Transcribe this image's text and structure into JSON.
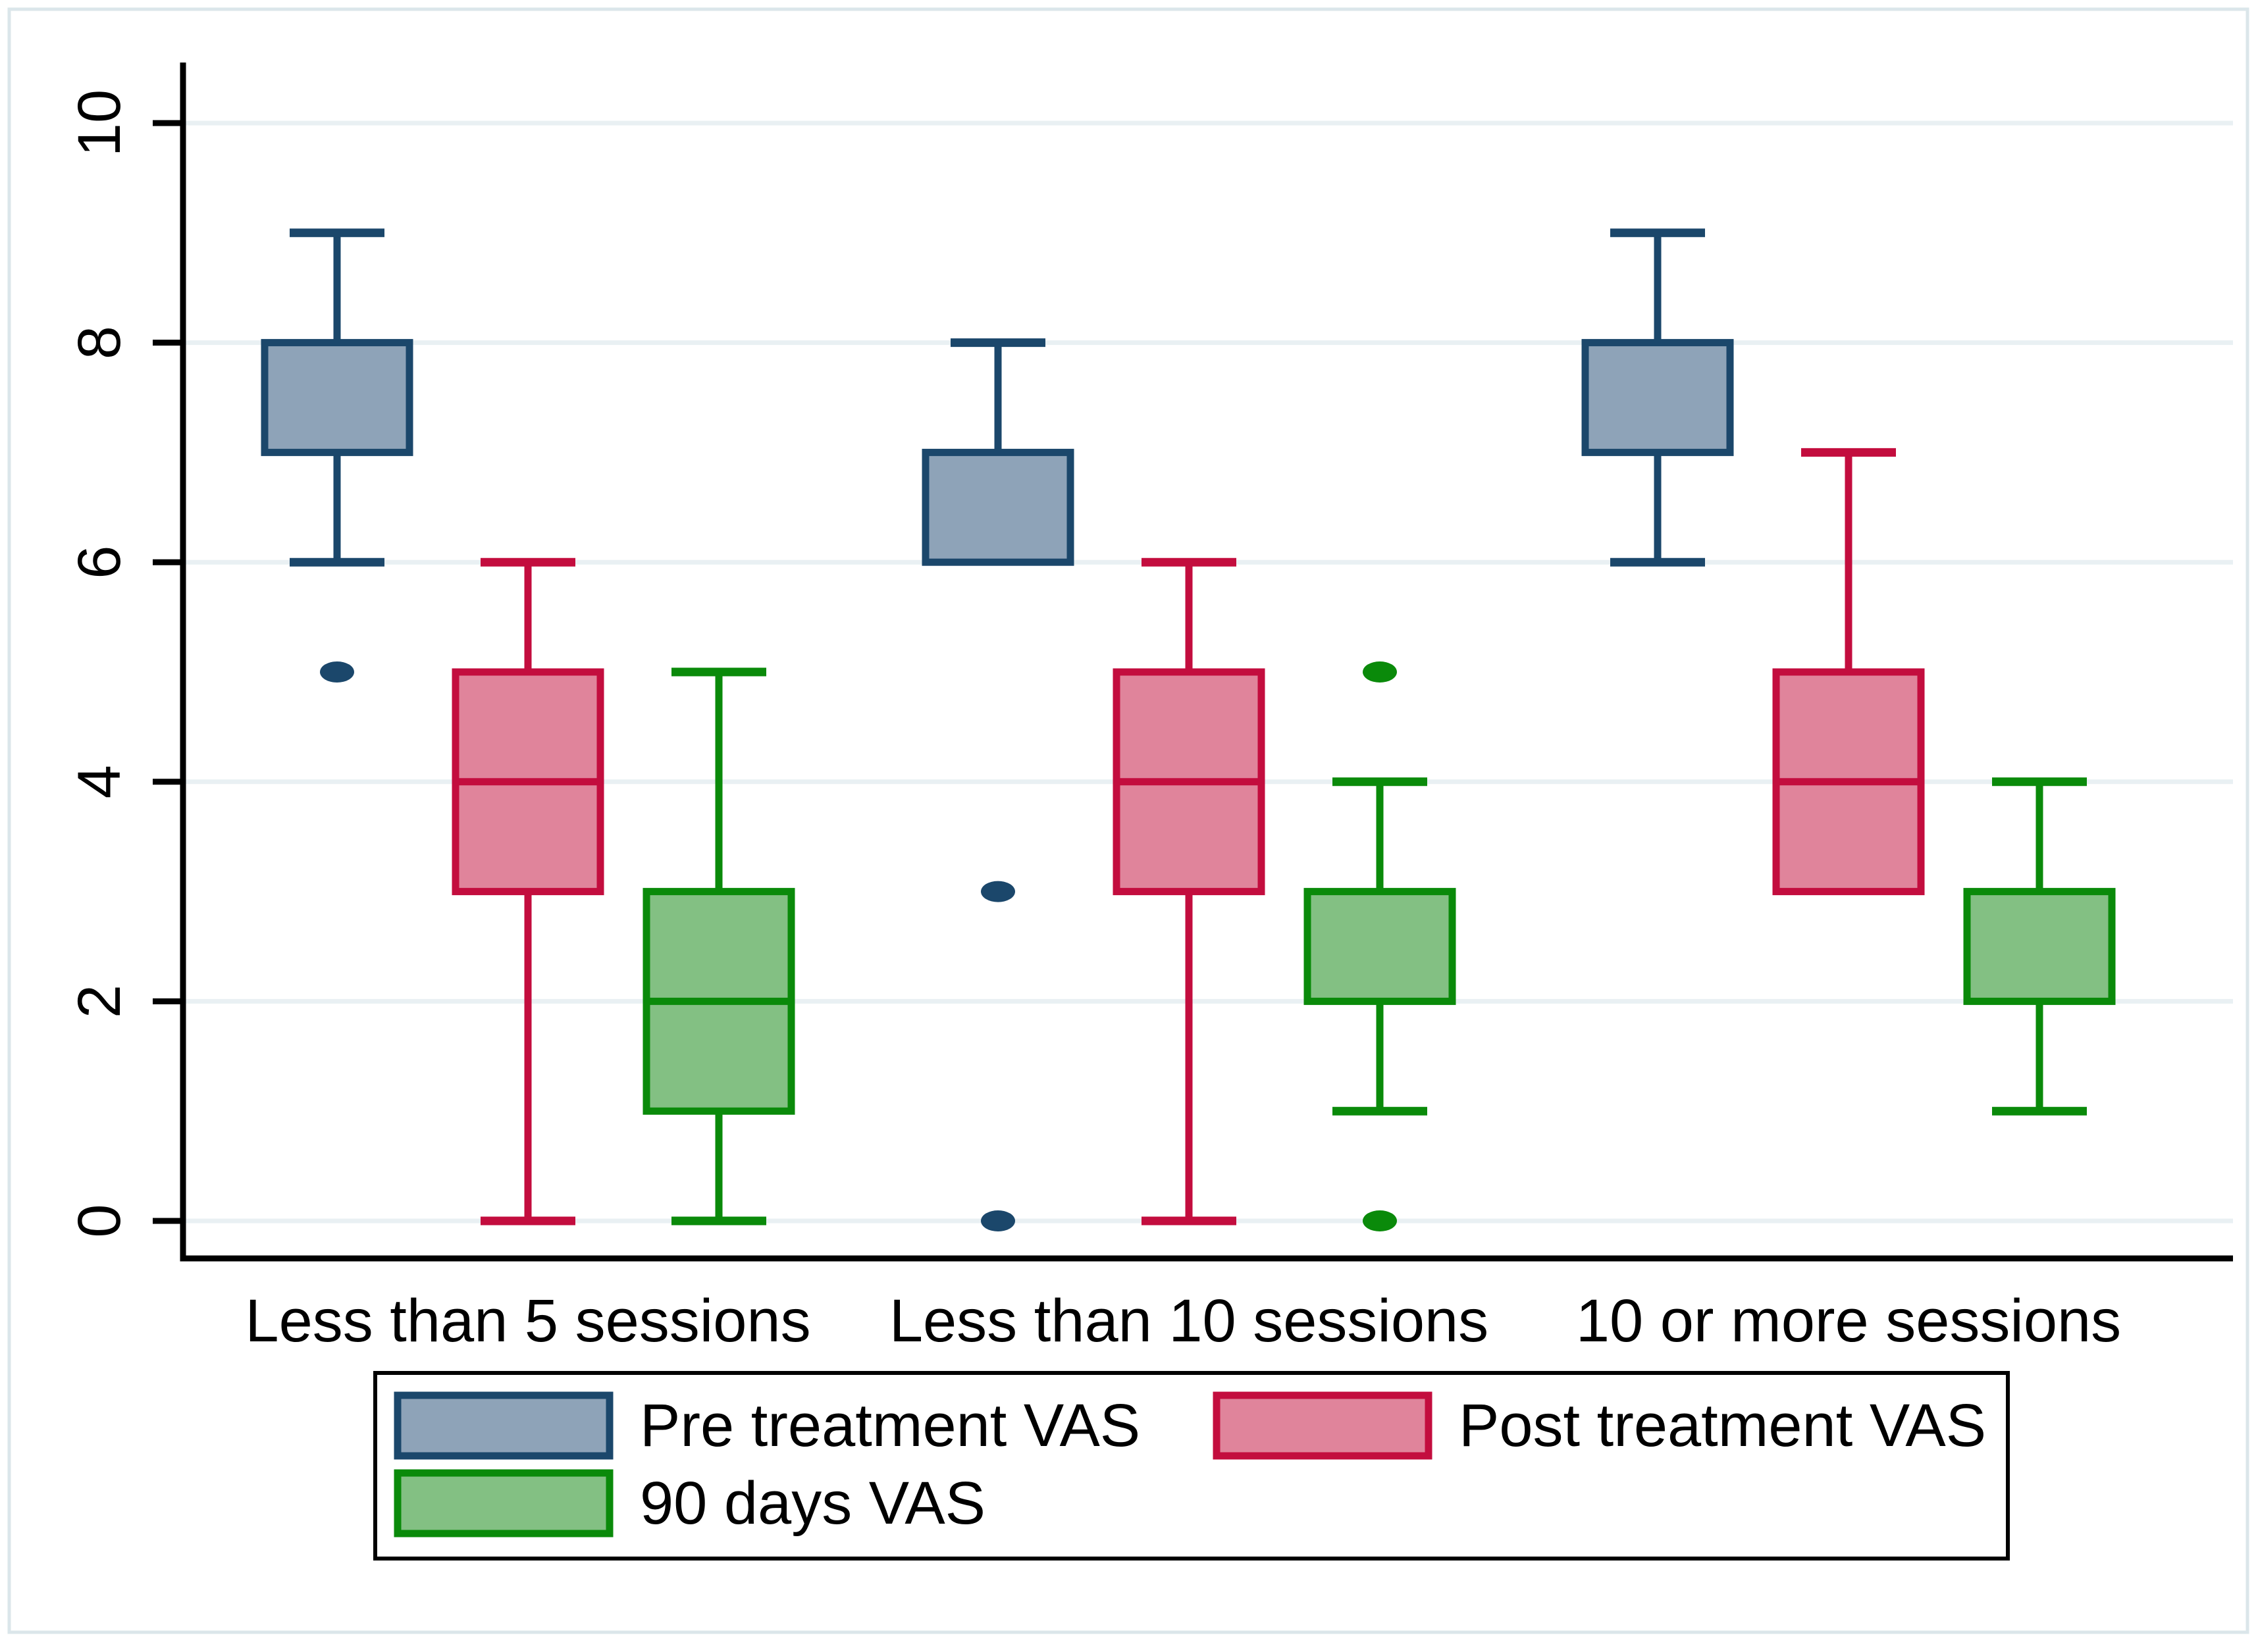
{
  "figure": {
    "background": "#ffffff",
    "outer_border_color": "#dbe6ea",
    "axis_color": "#000000",
    "text_color": "#000000"
  },
  "chart_data": {
    "type": "box",
    "title": "",
    "xlabel": "",
    "ylabel": "",
    "ylim": [
      0,
      10
    ],
    "yticks": [
      0,
      2,
      4,
      6,
      8,
      10
    ],
    "grid": true,
    "gridline_color": "#e9f0f3",
    "legend_position": "bottom",
    "categories": [
      "Less than 5 sessions",
      "Less than 10 sessions",
      "10 or more sessions"
    ],
    "series": [
      {
        "name": "Pre treatment VAS",
        "key": "pre-treatment-vas",
        "stroke": "#1b476b",
        "fill": "#8ea3b8",
        "boxes": [
          {
            "category": "Less than 5 sessions",
            "q1": 7,
            "median": null,
            "q3": 8,
            "whisker_low": 6,
            "whisker_high": 9,
            "outliers": [
              5
            ]
          },
          {
            "category": "Less than 10 sessions",
            "q1": 6,
            "median": null,
            "q3": 7,
            "whisker_low": 6,
            "whisker_high": 8,
            "outliers": [
              3,
              0
            ]
          },
          {
            "category": "10 or more sessions",
            "q1": 7,
            "median": null,
            "q3": 8,
            "whisker_low": 6,
            "whisker_high": 9,
            "outliers": []
          }
        ]
      },
      {
        "name": "Post treatment VAS",
        "key": "post-treatment-vas",
        "stroke": "#c30d3e",
        "fill": "#e0849b",
        "boxes": [
          {
            "category": "Less than 5 sessions",
            "q1": 3,
            "median": 4,
            "q3": 5,
            "whisker_low": 0,
            "whisker_high": 6,
            "outliers": []
          },
          {
            "category": "Less than 10 sessions",
            "q1": 3,
            "median": 4,
            "q3": 5,
            "whisker_low": 0,
            "whisker_high": 6,
            "outliers": []
          },
          {
            "category": "10 or more sessions",
            "q1": 3,
            "median": 4,
            "q3": 5,
            "whisker_low": 3,
            "whisker_high": 7,
            "outliers": []
          }
        ]
      },
      {
        "name": "90 days VAS",
        "key": "90-days-vas",
        "stroke": "#0a8a0a",
        "fill": "#83c083",
        "boxes": [
          {
            "category": "Less than 5 sessions",
            "q1": 1,
            "median": 2,
            "q3": 3,
            "whisker_low": 0,
            "whisker_high": 5,
            "outliers": []
          },
          {
            "category": "Less than 10 sessions",
            "q1": 2,
            "median": null,
            "q3": 3,
            "whisker_low": 1,
            "whisker_high": 4,
            "outliers": [
              5,
              0
            ]
          },
          {
            "category": "10 or more sessions",
            "q1": 2,
            "median": null,
            "q3": 3,
            "whisker_low": 1,
            "whisker_high": 4,
            "outliers": []
          }
        ]
      }
    ]
  }
}
